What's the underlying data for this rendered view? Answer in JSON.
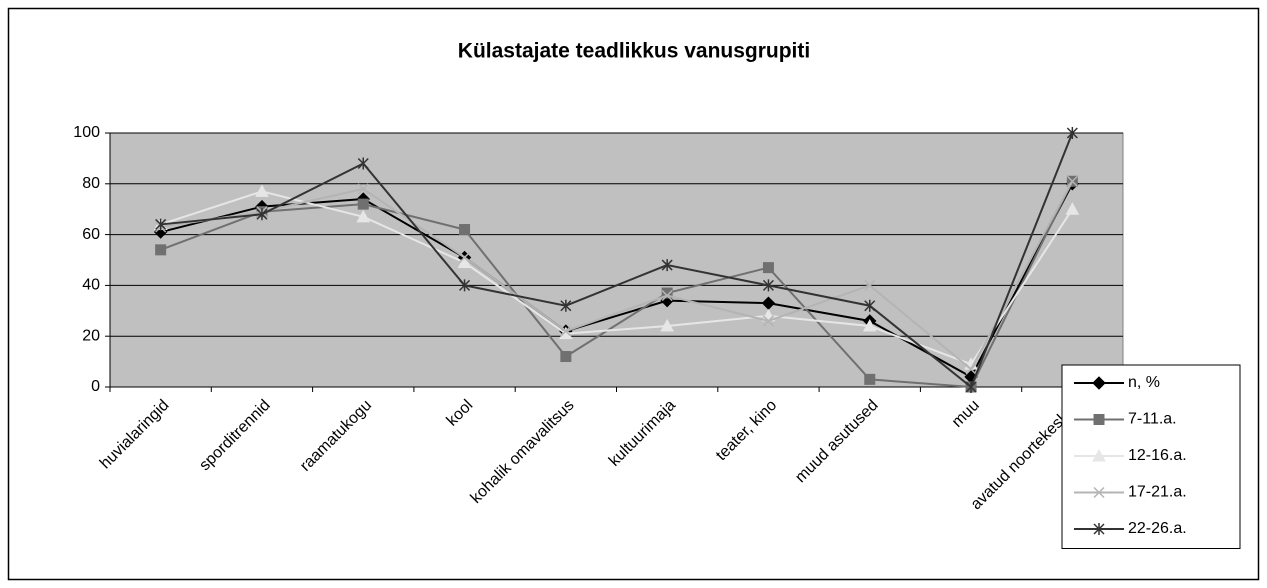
{
  "chart_data": {
    "type": "line",
    "title": "Külastajate teadlikkus vanusgrupiti",
    "categories": [
      "huvialaringid",
      "sporditrennid",
      "raamatukogu",
      "kool",
      "kohalik omavalitsus",
      "kultuurimaja",
      "teater, kino",
      "muud asutused",
      "muu",
      "avatud noortekeskus"
    ],
    "series": [
      {
        "name": "n, %",
        "color": "#000000",
        "marker": "diamond",
        "values": [
          61,
          71,
          74,
          51,
          22,
          34,
          33,
          26,
          4,
          80
        ]
      },
      {
        "name": "7-11.a.",
        "color": "#707070",
        "marker": "square",
        "values": [
          54,
          69,
          72,
          62,
          12,
          37,
          47,
          3,
          0,
          81
        ]
      },
      {
        "name": "12-16.a.",
        "color": "#e6e6e6",
        "marker": "triangle",
        "values": [
          64,
          77,
          67,
          49,
          21,
          24,
          28,
          24,
          9,
          70
        ]
      },
      {
        "name": "17-21.a.",
        "color": "#b4b4b4",
        "marker": "x",
        "values": [
          63,
          69,
          78,
          51,
          22,
          36,
          26,
          40,
          7,
          81
        ]
      },
      {
        "name": "22-26.a.",
        "color": "#333333",
        "marker": "star",
        "values": [
          64,
          68,
          88,
          40,
          32,
          48,
          40,
          32,
          0,
          100
        ]
      }
    ],
    "ylim": [
      0,
      100
    ],
    "yticks": [
      0,
      20,
      40,
      60,
      80,
      100
    ],
    "grid": true,
    "legend": "bottom-right"
  }
}
